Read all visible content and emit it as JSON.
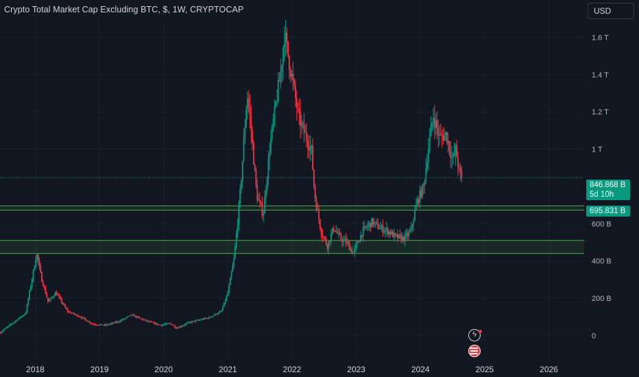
{
  "title": "Crypto Total Market Cap Excluding BTC, $, 1W, CRYPTOCAP",
  "currency": "USD",
  "colors": {
    "up": "#089981",
    "down": "#f23645",
    "level_line": "#4caf50",
    "background": "#131722"
  },
  "price_tag": {
    "value": "846.868 B",
    "countdown": "5d 10h"
  },
  "level_tag": {
    "value": "695.831 B"
  },
  "icons": [
    "lightning-icon",
    "flag-icon"
  ],
  "chart_data": {
    "type": "candlestick",
    "interval": "1W",
    "y_unit": "USD",
    "ylim": [
      -120,
      1800
    ],
    "y_ticks": [
      0,
      200,
      400,
      600,
      1000,
      1200,
      1400,
      1600
    ],
    "y_tick_labels": [
      "0",
      "200 B",
      "400 B",
      "600 B",
      "1 T",
      "1.2 T",
      "1.4 T",
      "1.6 T"
    ],
    "x_ticks": [
      2018,
      2019,
      2020,
      2021,
      2022,
      2023,
      2024,
      2025,
      2026
    ],
    "x_tick_labels": [
      "2018",
      "2019",
      "2020",
      "2021",
      "2022",
      "2023",
      "2024",
      "2025",
      "2026"
    ],
    "xlim": [
      2017.45,
      2026.55
    ],
    "key_points": [
      [
        2017.45,
        15
      ],
      [
        2017.85,
        120
      ],
      [
        2018.02,
        440
      ],
      [
        2018.1,
        300
      ],
      [
        2018.2,
        180
      ],
      [
        2018.32,
        230
      ],
      [
        2018.5,
        130
      ],
      [
        2018.7,
        100
      ],
      [
        2018.9,
        60
      ],
      [
        2019.1,
        55
      ],
      [
        2019.3,
        75
      ],
      [
        2019.5,
        110
      ],
      [
        2019.75,
        75
      ],
      [
        2019.95,
        55
      ],
      [
        2020.1,
        65
      ],
      [
        2020.2,
        40
      ],
      [
        2020.4,
        70
      ],
      [
        2020.7,
        95
      ],
      [
        2020.9,
        130
      ],
      [
        2021.0,
        230
      ],
      [
        2021.1,
        420
      ],
      [
        2021.2,
        800
      ],
      [
        2021.3,
        1300
      ],
      [
        2021.35,
        1150
      ],
      [
        2021.45,
        750
      ],
      [
        2021.55,
        650
      ],
      [
        2021.65,
        1000
      ],
      [
        2021.75,
        1250
      ],
      [
        2021.82,
        1400
      ],
      [
        2021.88,
        1620
      ],
      [
        2022.0,
        1380
      ],
      [
        2022.1,
        1170
      ],
      [
        2022.2,
        1080
      ],
      [
        2022.3,
        1000
      ],
      [
        2022.35,
        760
      ],
      [
        2022.45,
        560
      ],
      [
        2022.55,
        480
      ],
      [
        2022.65,
        580
      ],
      [
        2022.75,
        520
      ],
      [
        2022.85,
        500
      ],
      [
        2022.95,
        440
      ],
      [
        2023.1,
        560
      ],
      [
        2023.25,
        610
      ],
      [
        2023.35,
        580
      ],
      [
        2023.5,
        560
      ],
      [
        2023.6,
        530
      ],
      [
        2023.75,
        520
      ],
      [
        2023.85,
        560
      ],
      [
        2023.95,
        720
      ],
      [
        2024.05,
        800
      ],
      [
        2024.12,
        1000
      ],
      [
        2024.2,
        1180
      ],
      [
        2024.3,
        1060
      ],
      [
        2024.4,
        1080
      ],
      [
        2024.5,
        940
      ],
      [
        2024.55,
        1000
      ],
      [
        2024.6,
        880
      ],
      [
        2024.66,
        846.868
      ]
    ],
    "horizontal_levels": [
      {
        "value": 695.831,
        "label": "695.831 B"
      },
      {
        "value": 672
      },
      {
        "value": 510
      },
      {
        "value": 440
      }
    ],
    "last_price": 846.868
  }
}
